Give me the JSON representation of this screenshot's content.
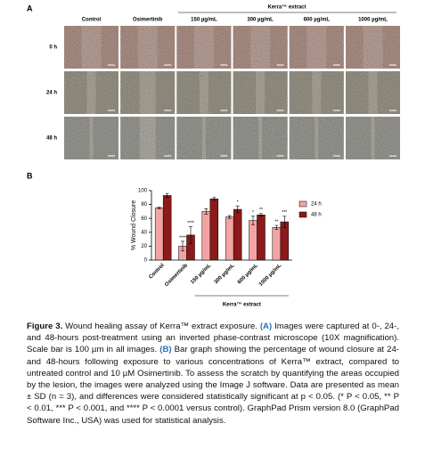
{
  "panel_a": {
    "letter": "A",
    "group_label": "Kerra™ extract",
    "columns": [
      "Control",
      "Osimertinib",
      "150 µg/mL",
      "300 µg/mL",
      "600 µg/mL",
      "1000 µg/mL"
    ],
    "rows": [
      "0 h",
      "24 h",
      "48 h"
    ]
  },
  "panel_b_letter": "B",
  "chart_data": {
    "type": "bar",
    "y_label": "% Wound Closure",
    "group_label": "Kerra™ extract",
    "categories": [
      "Control",
      "Osimertinib",
      "150 µg/mL",
      "300 µg/mL",
      "600 µg/mL",
      "1000 µg/mL"
    ],
    "series": [
      {
        "name": "24 h",
        "color": "#f4a3a3",
        "values": [
          75,
          20,
          70,
          62,
          57,
          47
        ],
        "errors": [
          1,
          7,
          4,
          2,
          6,
          3
        ],
        "annotations": [
          null,
          "****",
          null,
          null,
          "*",
          "**"
        ]
      },
      {
        "name": "48 h",
        "color": "#8b1a1a",
        "values": [
          93,
          36,
          88,
          73,
          65,
          55
        ],
        "errors": [
          3,
          12,
          2,
          5,
          2,
          8
        ],
        "annotations": [
          null,
          "****",
          null,
          "*",
          "**",
          "***"
        ]
      }
    ],
    "ylim": [
      0,
      100
    ],
    "yticks": [
      0,
      20,
      40,
      60,
      80,
      100
    ],
    "legend": "upper right"
  },
  "caption": {
    "label": "Figure 3.",
    "t1": " Wound healing assay of Kerra™ extract exposure. ",
    "ref_a": "(A)",
    "t2": " Images were captured at 0-, 24-, and 48-hours post-treatment using an inverted phase-contrast microscope (10X magnification). Scale bar is 100 µm in all images. ",
    "ref_b": "(B)",
    "t3": " Bar graph showing the percentage of wound closure at 24- and 48-hours following exposure to various concentrations of Kerra™ extract, compared to untreated control and 10 µM Osimertinib. To assess the scratch by quantifying the areas occupied by the lesion, the images were analyzed using the Image J software. Data are presented as mean ± SD (n = 3), and differences were considered statistically significant at p < 0.05. (* P < 0.05, ** P < 0.01, *** P < 0.001, and **** P < 0.0001 versus control). GraphPad Prism version 8.0 (GraphPad Software Inc., USA) was used for statistical analysis."
  }
}
